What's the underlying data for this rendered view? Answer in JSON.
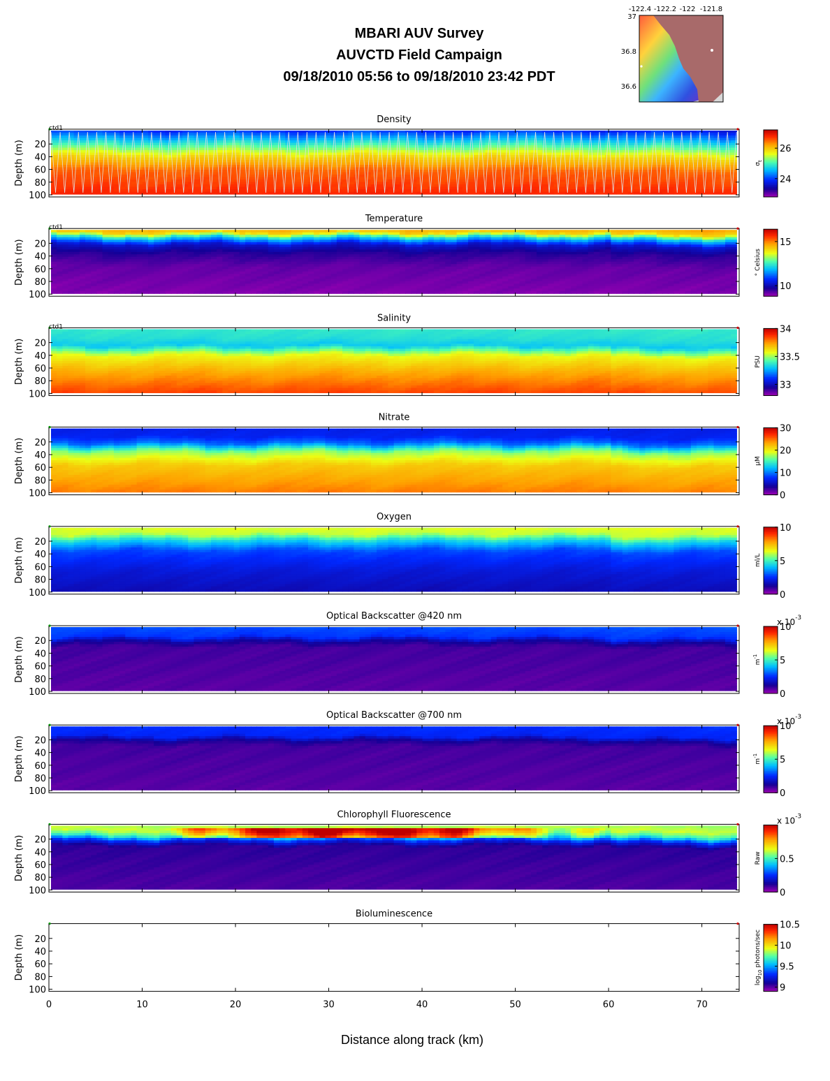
{
  "header": {
    "line1": "MBARI AUV Survey",
    "line2": "AUVCTD Field Campaign",
    "line3": "09/18/2010 05:56  to 09/18/2010 23:42 PDT"
  },
  "inset_map": {
    "lon_labels": [
      "-122.4",
      "-122.2",
      "-122",
      "-121.8"
    ],
    "lat_labels": [
      "37",
      "36.8",
      "36.6"
    ],
    "colors": {
      "land": "#a86a6a",
      "offshore": "#d8d8d8"
    }
  },
  "chart_data": {
    "type": "heatmap",
    "xlabel": "Distance along track (km)",
    "ylabel": "Depth (m)",
    "xlim": [
      0,
      74
    ],
    "ylim": [
      100,
      0
    ],
    "x_ticks": [
      0,
      10,
      20,
      30,
      40,
      50,
      60,
      70
    ],
    "y_ticks": [
      20,
      40,
      60,
      80,
      100
    ],
    "colormap": "jet",
    "panels": [
      {
        "title": "Density",
        "tag": "ctd1",
        "unit": "σ",
        "unit_sub": "t",
        "clim": [
          22.8,
          27.2
        ],
        "cticks": [
          "24",
          "26"
        ],
        "profile": [
          [
            0,
            23.6
          ],
          [
            12,
            24.2
          ],
          [
            25,
            24.9
          ],
          [
            45,
            25.9
          ],
          [
            65,
            26.5
          ],
          [
            100,
            26.8
          ]
        ],
        "pattern": "yoyo"
      },
      {
        "title": "Temperature",
        "tag": "ctd1",
        "unit": "° Celsius",
        "clim": [
          8.8,
          16.4
        ],
        "cticks": [
          "10",
          "15"
        ],
        "profile": [
          [
            0,
            14.8
          ],
          [
            10,
            14.2
          ],
          [
            18,
            12.0
          ],
          [
            28,
            10.2
          ],
          [
            40,
            9.6
          ],
          [
            60,
            9.2
          ],
          [
            100,
            9.0
          ]
        ],
        "pattern": "interface"
      },
      {
        "title": "Salinity",
        "tag": "ctd1",
        "unit": "PSU",
        "clim": [
          32.8,
          34.0
        ],
        "cticks": [
          "33",
          "33.5",
          "34"
        ],
        "profile": [
          [
            0,
            33.38
          ],
          [
            20,
            33.35
          ],
          [
            30,
            33.3
          ],
          [
            45,
            33.58
          ],
          [
            70,
            33.72
          ],
          [
            100,
            33.85
          ]
        ],
        "pattern": "interface"
      },
      {
        "title": "Nitrate",
        "tag": "",
        "unit": "µM",
        "clim": [
          0,
          30
        ],
        "cticks": [
          "0",
          "10",
          "20",
          "30"
        ],
        "profile": [
          [
            0,
            6.5
          ],
          [
            18,
            7.0
          ],
          [
            28,
            9.5
          ],
          [
            40,
            17.0
          ],
          [
            60,
            21.5
          ],
          [
            100,
            24.5
          ]
        ],
        "pattern": "interface"
      },
      {
        "title": "Oxygen",
        "tag": "",
        "unit": "ml/L",
        "clim": [
          0,
          10
        ],
        "cticks": [
          "0",
          "5",
          "10"
        ],
        "profile": [
          [
            0,
            6.4
          ],
          [
            15,
            6.1
          ],
          [
            25,
            4.4
          ],
          [
            40,
            2.8
          ],
          [
            70,
            2.0
          ],
          [
            100,
            1.6
          ]
        ],
        "pattern": "interface"
      },
      {
        "title": "Optical Backscatter @420 nm",
        "tag": "",
        "unit": "m",
        "unit_sup": "-1",
        "exponent": "x 10",
        "exponent_sup": "-3",
        "clim": [
          0,
          10
        ],
        "cticks": [
          "0",
          "5",
          "10"
        ],
        "profile": [
          [
            0,
            3.0
          ],
          [
            20,
            2.6
          ],
          [
            27,
            1.3
          ],
          [
            35,
            0.8
          ],
          [
            100,
            0.6
          ]
        ],
        "pattern": "interface"
      },
      {
        "title": "Optical Backscatter @700 nm",
        "tag": "",
        "unit": "m",
        "unit_sup": "-1",
        "exponent": "x 10",
        "exponent_sup": "-3",
        "clim": [
          0,
          10
        ],
        "cticks": [
          "0",
          "5",
          "10"
        ],
        "profile": [
          [
            0,
            2.6
          ],
          [
            20,
            2.4
          ],
          [
            27,
            1.2
          ],
          [
            35,
            0.8
          ],
          [
            100,
            0.6
          ]
        ],
        "pattern": "interface"
      },
      {
        "title": "Chlorophyll Fluorescence",
        "tag": "",
        "unit": "Raw",
        "exponent": "x 10",
        "exponent_sup": "-3",
        "clim": [
          0,
          1.0
        ],
        "cticks": [
          "0",
          "0.5"
        ],
        "profile": [
          [
            0,
            0.56
          ],
          [
            12,
            0.62
          ],
          [
            20,
            0.5
          ],
          [
            28,
            0.24
          ],
          [
            36,
            0.1
          ],
          [
            100,
            0.07
          ]
        ],
        "pattern": "bloom"
      },
      {
        "title": "Bioluminescence",
        "tag": "",
        "unit": "log",
        "unit_sub": "10",
        "unit_rest": " photons/sec",
        "clim": [
          8.9,
          10.5
        ],
        "cticks": [
          "9",
          "9.5",
          "10",
          "10.5"
        ],
        "profile": [],
        "pattern": "empty"
      }
    ]
  }
}
